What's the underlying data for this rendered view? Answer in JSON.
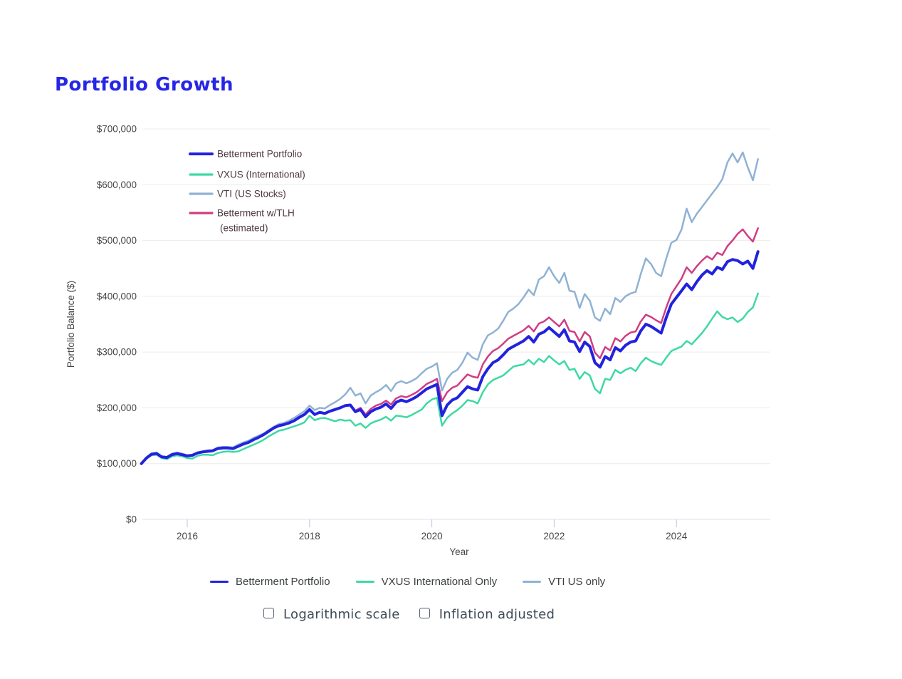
{
  "title": "Portfolio Growth",
  "chart_data": {
    "type": "line",
    "title": "Portfolio Growth",
    "xlabel": "Year",
    "ylabel": "Portfolio Balance ($)",
    "x_start": 2015.25,
    "x_step": 0.0833333,
    "x_note": "monthly points, decimal years",
    "xlim": [
      2015.17,
      2025.6
    ],
    "ylim": [
      0,
      700000
    ],
    "values_unit": "USD thousands",
    "grid": "horizontal-only",
    "legend_position": "inside top-left",
    "y_tick_values": [
      0,
      100000,
      200000,
      300000,
      400000,
      500000,
      600000,
      700000
    ],
    "y_tick_labels": [
      "$0",
      "$100,000",
      "$200,000",
      "$300,000",
      "$400,000",
      "$500,000",
      "$600,000",
      "$700,000"
    ],
    "x_tick_values": [
      2016,
      2018,
      2020,
      2022,
      2024
    ],
    "x_tick_labels": [
      "2016",
      "2018",
      "2020",
      "2022",
      "2024"
    ],
    "series": [
      {
        "name": "Betterment Portfolio",
        "color": "#2222dd",
        "line_width": 4,
        "values": [
          100,
          110,
          117,
          118,
          112,
          111,
          116,
          118,
          116,
          114,
          115,
          119,
          121,
          122,
          123,
          127,
          128,
          128,
          127,
          131,
          135,
          138,
          143,
          147,
          152,
          158,
          164,
          168,
          170,
          173,
          177,
          183,
          188,
          197,
          188,
          192,
          190,
          194,
          197,
          200,
          204,
          205,
          193,
          197,
          184,
          193,
          198,
          201,
          207,
          199,
          210,
          214,
          211,
          215,
          220,
          227,
          234,
          238,
          242,
          186,
          205,
          214,
          218,
          228,
          238,
          234,
          232,
          256,
          270,
          281,
          286,
          295,
          305,
          310,
          315,
          320,
          328,
          318,
          332,
          336,
          344,
          336,
          328,
          340,
          320,
          318,
          301,
          318,
          310,
          281,
          273,
          292,
          286,
          308,
          302,
          312,
          318,
          320,
          338,
          350,
          346,
          340,
          334,
          362,
          386,
          398,
          410,
          422,
          412,
          426,
          438,
          446,
          440,
          452,
          448,
          462,
          466,
          464,
          458,
          463,
          450,
          480
        ]
      },
      {
        "name": "VXUS (International)",
        "color": "#3ed9a3",
        "line_width": 2.5,
        "values": [
          100,
          109,
          115,
          116,
          110,
          108,
          113,
          115,
          113,
          110,
          109,
          114,
          116,
          116,
          115,
          119,
          121,
          122,
          121,
          122,
          126,
          130,
          134,
          138,
          143,
          149,
          154,
          159,
          161,
          164,
          167,
          170,
          174,
          186,
          178,
          181,
          182,
          179,
          176,
          179,
          177,
          178,
          168,
          172,
          164,
          172,
          176,
          179,
          184,
          177,
          186,
          185,
          183,
          187,
          192,
          197,
          208,
          215,
          218,
          168,
          182,
          190,
          196,
          204,
          214,
          212,
          208,
          228,
          242,
          250,
          254,
          258,
          266,
          274,
          276,
          278,
          286,
          278,
          288,
          282,
          293,
          285,
          278,
          284,
          268,
          270,
          252,
          264,
          258,
          234,
          226,
          252,
          250,
          268,
          262,
          268,
          272,
          266,
          280,
          290,
          284,
          280,
          277,
          290,
          302,
          306,
          310,
          320,
          314,
          324,
          334,
          346,
          360,
          373,
          363,
          359,
          362,
          354,
          360,
          372,
          380,
          405
        ]
      },
      {
        "name": "VTI (US Stocks)",
        "color": "#8fb2d4",
        "line_width": 2.5,
        "values": [
          100,
          111,
          118,
          120,
          113,
          112,
          118,
          120,
          118,
          115,
          114,
          120,
          122,
          124,
          124,
          129,
          130,
          130,
          129,
          134,
          138,
          141,
          146,
          150,
          154,
          160,
          166,
          171,
          173,
          177,
          182,
          188,
          194,
          204,
          196,
          200,
          199,
          205,
          210,
          216,
          224,
          236,
          222,
          226,
          208,
          222,
          228,
          233,
          241,
          230,
          244,
          248,
          244,
          248,
          253,
          262,
          270,
          274,
          280,
          231,
          252,
          263,
          268,
          281,
          299,
          290,
          286,
          314,
          330,
          335,
          342,
          356,
          372,
          378,
          386,
          398,
          412,
          402,
          430,
          436,
          452,
          436,
          424,
          442,
          410,
          408,
          379,
          404,
          392,
          362,
          356,
          378,
          368,
          397,
          390,
          400,
          405,
          408,
          440,
          468,
          458,
          442,
          436,
          468,
          496,
          501,
          520,
          557,
          533,
          548,
          560,
          572,
          584,
          596,
          610,
          640,
          656,
          640,
          658,
          631,
          608,
          646
        ]
      },
      {
        "name": "Betterment w/TLH (estimated)",
        "color": "#d13d82",
        "line_width": 2.5,
        "values": [
          100,
          110,
          117,
          118,
          112,
          111,
          116,
          118,
          116,
          114,
          115,
          119,
          121,
          122,
          123,
          127,
          128,
          128,
          127,
          131,
          135,
          138,
          143,
          147,
          152,
          158,
          164,
          168,
          170,
          173,
          177,
          183,
          188,
          197,
          188,
          192,
          190,
          194,
          197,
          200,
          204,
          206,
          195,
          200,
          188,
          198,
          204,
          207,
          213,
          206,
          217,
          221,
          219,
          223,
          228,
          235,
          243,
          247,
          252,
          212,
          228,
          236,
          240,
          250,
          260,
          256,
          254,
          278,
          292,
          302,
          307,
          315,
          324,
          329,
          334,
          339,
          347,
          337,
          351,
          355,
          362,
          354,
          346,
          358,
          338,
          336,
          319,
          336,
          328,
          299,
          289,
          309,
          303,
          325,
          319,
          329,
          335,
          337,
          355,
          367,
          363,
          357,
          352,
          380,
          404,
          418,
          432,
          452,
          442,
          454,
          464,
          472,
          466,
          478,
          474,
          490,
          500,
          512,
          520,
          508,
          498,
          522
        ]
      }
    ]
  },
  "inset_legend": {
    "items": [
      {
        "label": "Betterment Portfolio",
        "color": "#2222dd"
      },
      {
        "label": "VXUS (International)",
        "color": "#3ed9a3"
      },
      {
        "label": "VTI (US Stocks)",
        "color": "#8fb2d4"
      },
      {
        "label": "Betterment w/TLH",
        "label2": "(estimated)",
        "color": "#d13d82"
      }
    ]
  },
  "bottom_legend": {
    "items": [
      {
        "label": "Betterment Portfolio",
        "color": "#2222dd"
      },
      {
        "label": "VXUS International Only",
        "color": "#3ed9a3"
      },
      {
        "label": "VTI US only",
        "color": "#8fb2d4"
      }
    ]
  },
  "controls": {
    "checkboxes": [
      {
        "label": "Logarithmic scale",
        "checked": false
      },
      {
        "label": "Inflation adjusted",
        "checked": false
      }
    ]
  }
}
